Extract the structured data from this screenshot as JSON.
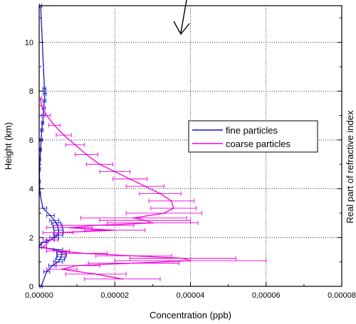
{
  "chart_data": {
    "type": "line",
    "xlabel": "Concentration  (ppb)",
    "ylabel": "Height  (km)",
    "y2label": "Real part of refractive index",
    "xlim": [
      0,
      8e-05
    ],
    "ylim": [
      0,
      11.5
    ],
    "x_ticks": [
      0,
      2e-05,
      4e-05,
      6e-05,
      8e-05
    ],
    "x_tick_labels": [
      "0,00000",
      "0,00002",
      "0,00004",
      "0,00006",
      "0,00008"
    ],
    "y_ticks": [
      0,
      2,
      4,
      6,
      8,
      10
    ],
    "y_tick_labels": [
      "0",
      "2",
      "4",
      "6",
      "8",
      "10"
    ],
    "grid": true,
    "grid_style": "dotted",
    "legend_position": "right",
    "annotations": [
      {
        "type": "arrow",
        "shape": "hand-drawn down-left arrow",
        "location": "above plot"
      }
    ],
    "series": [
      {
        "name": "fine particles",
        "color": "#1414c8",
        "x": [
          4e-07,
          1.4e-06,
          1.5e-06,
          1.4e-06,
          1.2e-06,
          1.1e-06,
          9e-07,
          7e-07,
          5e-07,
          4e-07,
          2e-07,
          1e-07,
          1e-07,
          2e-07,
          1e-06,
          3e-06,
          4e-06,
          4.5e-06,
          4.8e-06,
          5e-06,
          5.1e-06,
          5.2e-06,
          5e-06,
          4e-06,
          3e-06,
          1e-06,
          1e-07,
          1e-07,
          5e-06,
          5.8e-06,
          6e-06,
          5.8e-06,
          5.5e-06,
          5e-06,
          3.5e-06,
          2e-06,
          5e-07
        ],
        "y": [
          11.5,
          8.1,
          7.9,
          7.6,
          7.3,
          7.0,
          6.7,
          6.4,
          6.0,
          5.6,
          5.2,
          4.8,
          4.3,
          3.8,
          3.2,
          2.9,
          2.7,
          2.6,
          2.5,
          2.4,
          2.3,
          2.2,
          2.1,
          2.0,
          1.9,
          1.8,
          1.7,
          1.6,
          1.5,
          1.4,
          1.3,
          1.2,
          1.1,
          1.0,
          0.85,
          0.6,
          0.0
        ],
        "xerr": [
          3e-07,
          4e-07,
          4e-07,
          4e-07,
          4e-07,
          4e-07,
          3e-07,
          3e-07,
          3e-07,
          2e-07,
          2e-07,
          2e-07,
          2e-07,
          2e-07,
          1e-06,
          1e-06,
          1.2e-06,
          1.2e-06,
          1.2e-06,
          1.2e-06,
          1.2e-06,
          1.2e-06,
          1.2e-06,
          1.2e-06,
          1e-06,
          1e-06,
          5e-07,
          5e-07,
          1.2e-06,
          1.2e-06,
          1.2e-06,
          1.2e-06,
          1.2e-06,
          1.2e-06,
          1e-06,
          8e-07,
          3e-07
        ]
      },
      {
        "name": "coarse particles",
        "color": "#f000d8",
        "x": [
          3e-07,
          6e-07,
          2e-06,
          4e-06,
          6.5e-06,
          9.5e-06,
          1.25e-05,
          1.6e-05,
          2e-05,
          2.4e-05,
          2.8e-05,
          3.2e-05,
          3.5e-05,
          3.55e-05,
          3.3e-05,
          2.5e-05,
          2.8e-05,
          3e-05,
          1.5e-05,
          8e-06,
          2e-05,
          5e-06,
          3e-06,
          1e-06,
          5e-06,
          1.2e-05,
          2.5e-05,
          3.8e-05,
          4e-05,
          2.5e-05,
          1e-05,
          6e-06,
          1.5e-05,
          2.2e-05
        ],
        "y": [
          7.7,
          7.4,
          7.0,
          6.6,
          6.2,
          5.8,
          5.4,
          5.0,
          4.7,
          4.4,
          4.1,
          3.8,
          3.5,
          3.2,
          3.0,
          2.8,
          2.7,
          2.6,
          2.5,
          2.4,
          2.3,
          2.2,
          1.9,
          1.6,
          1.45,
          1.35,
          1.25,
          1.15,
          1.05,
          0.95,
          0.85,
          0.7,
          0.5,
          0.3
        ],
        "xerr": [
          3e-07,
          6e-07,
          1e-06,
          1.5e-06,
          2e-06,
          2.5e-06,
          3e-06,
          3.5e-06,
          4e-06,
          4.5e-06,
          5e-06,
          5.5e-06,
          6e-06,
          6e-06,
          1e-05,
          1.4e-05,
          1.2e-05,
          1.2e-05,
          1e-05,
          6e-06,
          8e-06,
          4e-06,
          2e-06,
          1e-06,
          3e-06,
          6e-06,
          1e-05,
          1.4e-05,
          2e-05,
          1.2e-05,
          6e-06,
          4e-06,
          8e-06,
          1e-05
        ]
      }
    ]
  }
}
